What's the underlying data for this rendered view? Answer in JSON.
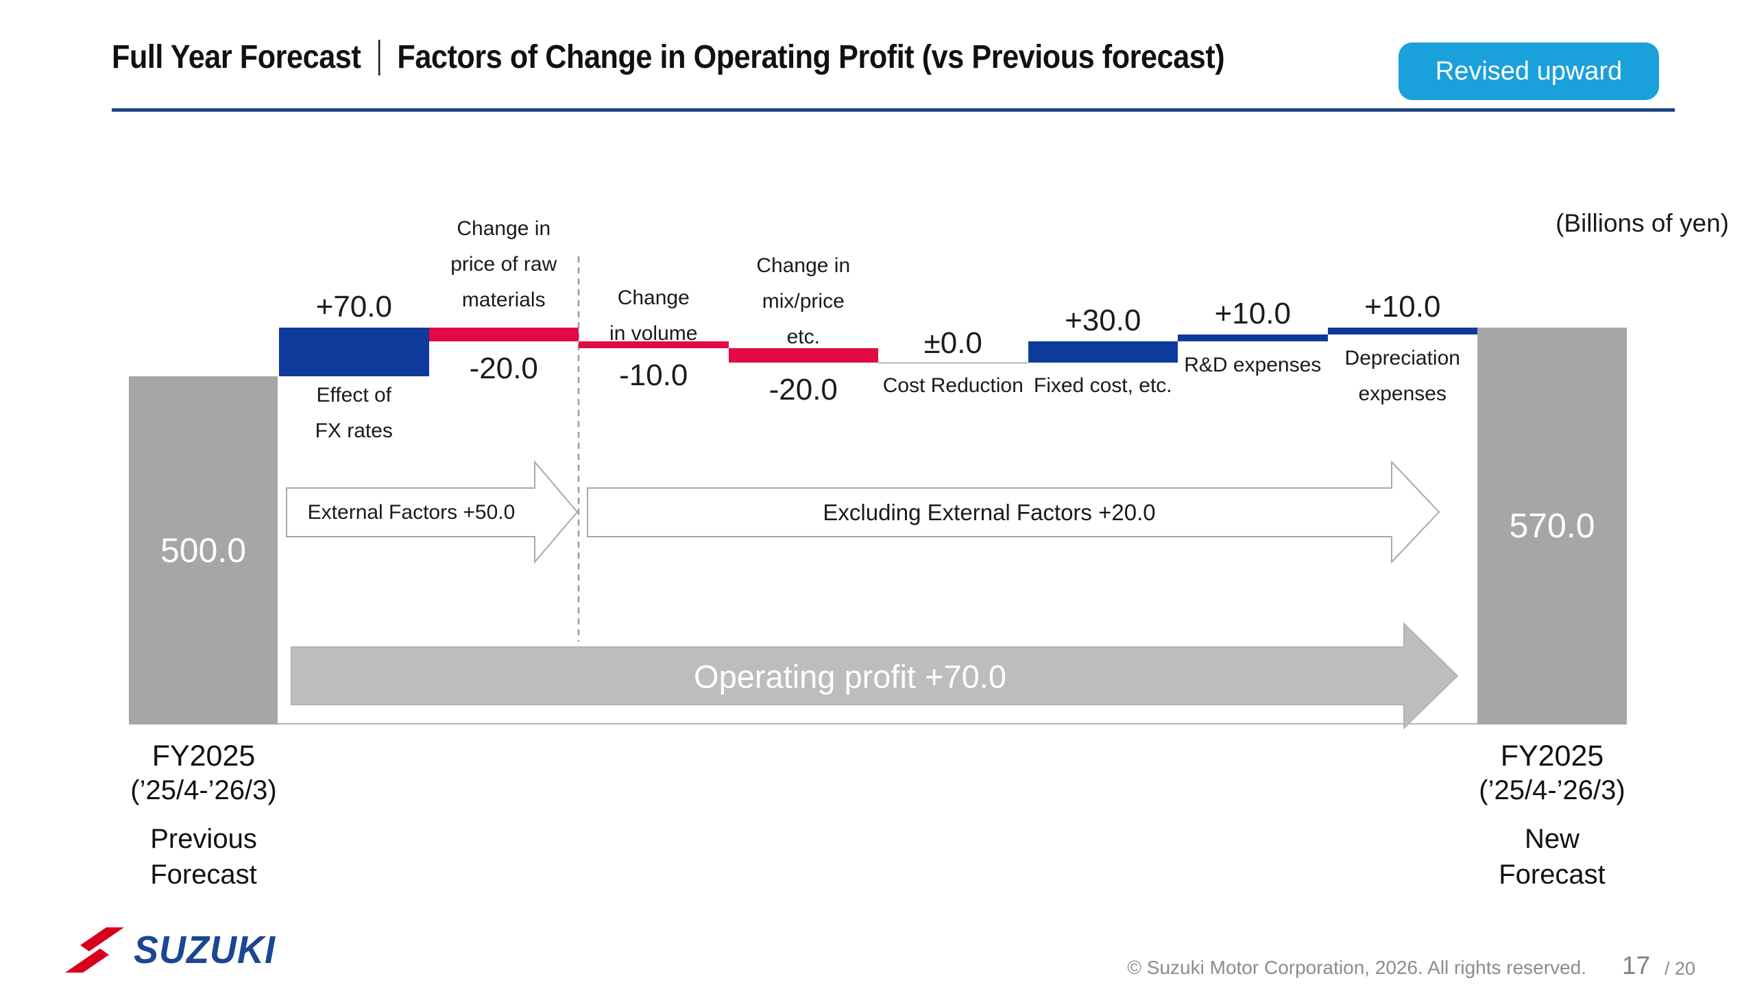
{
  "header": {
    "title_left": "Full Year Forecast",
    "title_right": "Factors of Change in Operating Profit (vs Previous forecast)",
    "badge": "Revised upward"
  },
  "chart_data": {
    "type": "waterfall",
    "unit_label": "(Billions of yen)",
    "start": {
      "value": 500.0,
      "display": "500.0",
      "line1": "FY2025",
      "line2": "(’25/4-’26/3)",
      "line3": "Previous",
      "line4": "Forecast"
    },
    "end": {
      "value": 570.0,
      "display": "570.0",
      "line1": "FY2025",
      "line2": "(’25/4-’26/3)",
      "line3": "New",
      "line4": "Forecast"
    },
    "steps": [
      {
        "name": "effect-of-fx-rates",
        "label_lines": [
          "Effect of",
          "FX rates"
        ],
        "value": 70.0,
        "display": "+70.0"
      },
      {
        "name": "change-in-price-of-raw-materials",
        "label_lines": [
          "Change in",
          "price of raw",
          "materials"
        ],
        "value": -20.0,
        "display": "-20.0"
      },
      {
        "name": "change-in-volume",
        "label_lines": [
          "Change",
          "in volume"
        ],
        "value": -10.0,
        "display": "-10.0"
      },
      {
        "name": "change-in-mix-price-etc",
        "label_lines": [
          "Change in",
          "mix/price",
          "etc."
        ],
        "value": -20.0,
        "display": "-20.0"
      },
      {
        "name": "cost-reduction",
        "label_lines": [
          "Cost Reduction"
        ],
        "value": 0.0,
        "display": "±0.0"
      },
      {
        "name": "fixed-cost-etc",
        "label_lines": [
          "Fixed cost, etc."
        ],
        "value": 30.0,
        "display": "+30.0"
      },
      {
        "name": "rd-expenses",
        "label_lines": [
          "R&D expenses"
        ],
        "value": 10.0,
        "display": "+10.0"
      },
      {
        "name": "depreciation-expenses",
        "label_lines": [
          "Depreciation",
          "expenses"
        ],
        "value": 10.0,
        "display": "+10.0"
      }
    ],
    "annotations": [
      {
        "name": "external-factors-arrow",
        "label": "External Factors +50.0"
      },
      {
        "name": "excluding-external-factors-arrow",
        "label": "Excluding External Factors +20.0"
      },
      {
        "name": "operating-profit-arrow",
        "label": "Operating profit +70.0"
      }
    ],
    "legend_position": "none",
    "grid": false
  },
  "footer": {
    "logo_text": "SUZUKI",
    "copyright": "© Suzuki Motor Corporation, 2026. All rights reserved.",
    "page": "17",
    "page_suffix": "/ 20"
  },
  "colors": {
    "positive_bar": "#0e3a9b",
    "negative_bar": "#e20a44",
    "zero_line": "#c4ccd6",
    "total_bar": "#a6a6a6",
    "badge_bg": "#1aa0da",
    "title_rule": "#1c4587",
    "operating_arrow": "#bdbdbd",
    "white_arrow_border": "#a9a9a9",
    "dashed_separator": "#9b9b9b",
    "footer_text": "#8c8c8c",
    "logo_blue": "#1b4693",
    "logo_red": "#d6001c"
  }
}
